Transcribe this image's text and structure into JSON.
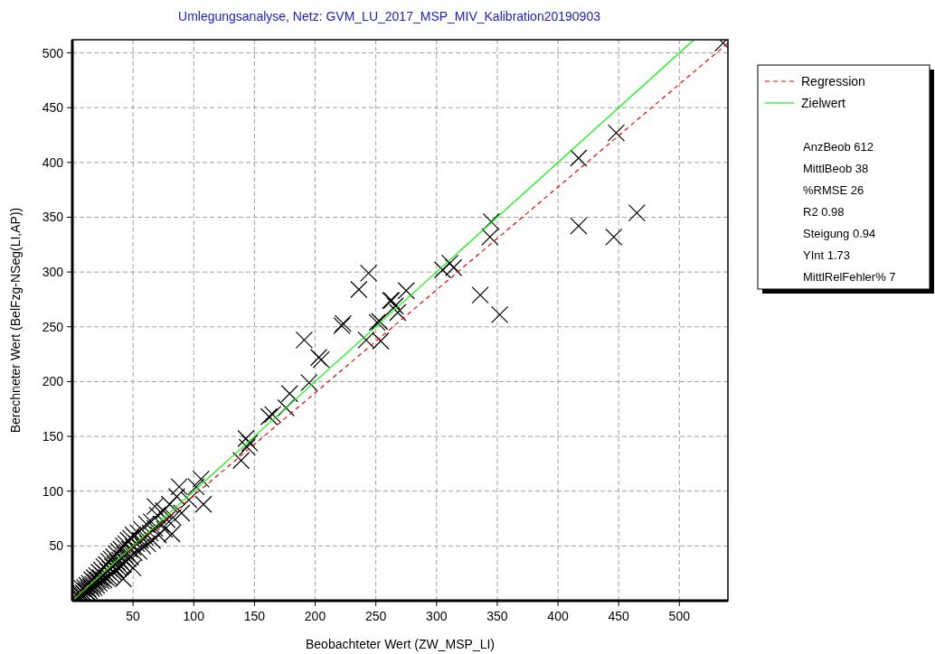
{
  "chart_data": {
    "type": "scatter",
    "title": "Umlegungsanalyse, Netz: GVM_LU_2017_MSP_MIV_Kalibration20190903",
    "xlabel": "Beobachteter Wert (ZW_MSP_LI)",
    "ylabel": "Berechneter Wert (BelFzg-NSeg(LI,AP))",
    "xlim": [
      0,
      540
    ],
    "ylim": [
      0,
      512
    ],
    "xticks": [
      50,
      100,
      150,
      200,
      250,
      300,
      350,
      400,
      450,
      500
    ],
    "yticks": [
      50,
      100,
      150,
      200,
      250,
      300,
      350,
      400,
      450,
      500
    ],
    "grid": true,
    "legend": "right",
    "annotations": [
      "AnzBeob 612",
      "MittlBeob 38",
      "%RMSE 26",
      "R2 0.98",
      "Steigung 0.94",
      "YInt 1.73",
      "MittlRelFehler% 7"
    ],
    "series": [
      {
        "color": "#000000",
        "marker": "cross",
        "x": [
          3,
          4,
          5,
          6,
          7,
          8,
          8,
          9,
          10,
          10,
          11,
          12,
          12,
          13,
          14,
          14,
          15,
          16,
          16,
          17,
          18,
          18,
          19,
          20,
          20,
          21,
          22,
          22,
          23,
          24,
          24,
          25,
          26,
          26,
          27,
          28,
          28,
          29,
          30,
          30,
          31,
          32,
          32,
          33,
          34,
          34,
          35,
          36,
          36,
          37,
          38,
          38,
          39,
          40,
          40,
          41,
          42,
          42,
          43,
          44,
          44,
          45,
          46,
          46,
          47,
          48,
          48,
          50,
          50,
          51,
          53,
          54,
          55,
          56,
          57,
          58,
          60,
          61,
          62,
          64,
          65,
          66,
          68,
          70,
          71,
          73,
          75,
          76,
          78,
          80,
          83,
          86,
          90,
          96,
          102,
          42,
          50,
          82,
          68,
          88,
          106,
          108,
          139,
          143,
          144,
          146,
          162,
          165,
          176,
          179,
          195,
          191,
          203,
          205,
          222,
          223,
          242,
          254,
          253,
          251,
          268,
          263,
          266,
          275,
          262,
          236,
          244,
          305,
          311,
          314,
          336,
          344,
          345,
          352,
          417,
          417,
          446,
          448,
          465,
          536
        ],
        "values": [
          2,
          6,
          3,
          8,
          5,
          4,
          11,
          7,
          12,
          6,
          9,
          14,
          8,
          11,
          16,
          9,
          13,
          19,
          11,
          15,
          21,
          12,
          17,
          23,
          14,
          19,
          26,
          16,
          21,
          28,
          18,
          23,
          31,
          19,
          25,
          33,
          21,
          27,
          36,
          22,
          29,
          38,
          24,
          31,
          40,
          26,
          33,
          43,
          28,
          35,
          45,
          30,
          37,
          47,
          31,
          39,
          50,
          33,
          42,
          52,
          36,
          44,
          55,
          38,
          47,
          57,
          40,
          49,
          60,
          44,
          52,
          62,
          45,
          55,
          65,
          50,
          58,
          70,
          52,
          62,
          72,
          55,
          66,
          78,
          60,
          70,
          82,
          65,
          74,
          88,
          76,
          95,
          80,
          92,
          104,
          20,
          30,
          61,
          86,
          104,
          111,
          88,
          128,
          148,
          140,
          144,
          168,
          170,
          176,
          189,
          199,
          238,
          222,
          220,
          251,
          253,
          238,
          237,
          255,
          254,
          263,
          274,
          269,
          283,
          274,
          284,
          299,
          302,
          308,
          304,
          279,
          332,
          346,
          261,
          404,
          342,
          332,
          427,
          354,
          509
        ]
      },
      {
        "type": "line",
        "name": "Regression",
        "color": "#ff0000",
        "line_style": "dashed",
        "x": [
          0,
          540
        ],
        "values": [
          2,
          509
        ]
      },
      {
        "type": "line",
        "name": "Zielwert",
        "color": "#00ff00",
        "line_style": "solid",
        "x": [
          0,
          512
        ],
        "values": [
          0,
          512
        ]
      }
    ]
  }
}
